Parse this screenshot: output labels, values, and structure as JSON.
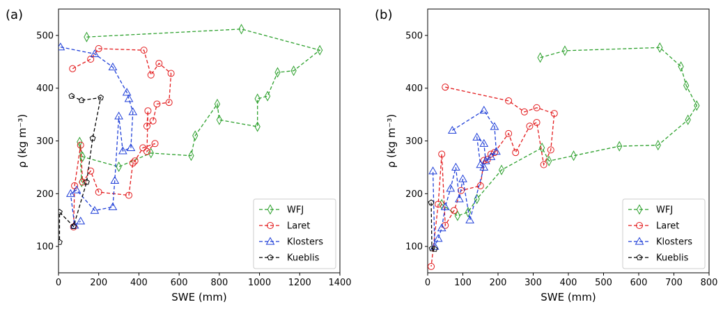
{
  "chart_data": [
    {
      "type": "line",
      "panel_label": "(a)",
      "xlabel": "SWE (mm)",
      "ylabel": "ρ (kg m⁻³)",
      "xlim": [
        0,
        1400
      ],
      "ylim": [
        50,
        550
      ],
      "xticks": [
        0,
        200,
        400,
        600,
        800,
        1000,
        1200,
        1400
      ],
      "yticks": [
        100,
        200,
        300,
        400,
        500
      ],
      "legend_position": "lower-right",
      "series": [
        {
          "name": "WFJ",
          "color": "#2ca02c",
          "marker": "diamond",
          "x": [
            140,
            910,
            1300,
            1170,
            1090,
            1040,
            990,
            990,
            800,
            790,
            680,
            660,
            460,
            300,
            120,
            105,
            115
          ],
          "y": [
            497,
            512,
            472,
            433,
            430,
            385,
            380,
            327,
            340,
            370,
            310,
            272,
            277,
            251,
            270,
            298,
            222
          ]
        },
        {
          "name": "Laret",
          "color": "#e31a1c",
          "marker": "circle",
          "x": [
            70,
            160,
            200,
            425,
            460,
            500,
            560,
            550,
            490,
            470,
            440,
            445,
            440,
            480,
            420,
            380,
            370,
            350,
            200,
            160,
            120,
            110,
            80,
            75
          ],
          "y": [
            437,
            455,
            475,
            472,
            425,
            447,
            428,
            373,
            370,
            338,
            328,
            357,
            280,
            295,
            287,
            262,
            258,
            197,
            203,
            243,
            222,
            292,
            215,
            137
          ]
        },
        {
          "name": "Klosters",
          "color": "#1f3fd8",
          "marker": "triangle",
          "x": [
            10,
            180,
            270,
            340,
            350,
            370,
            360,
            320,
            300,
            280,
            270,
            180,
            90,
            60,
            80,
            110
          ],
          "y": [
            478,
            465,
            440,
            392,
            380,
            355,
            287,
            281,
            347,
            225,
            175,
            168,
            207,
            200,
            140,
            148
          ]
        },
        {
          "name": "Kueblis",
          "color": "#000000",
          "marker": "pentagon",
          "x": [
            65,
            115,
            210,
            170,
            140,
            75,
            5,
            5
          ],
          "y": [
            385,
            377,
            382,
            305,
            222,
            138,
            165,
            108
          ]
        }
      ]
    },
    {
      "type": "line",
      "panel_label": "(b)",
      "xlabel": "SWE (mm)",
      "ylabel": "ρ (kg m⁻³)",
      "xlim": [
        0,
        800
      ],
      "ylim": [
        50,
        550
      ],
      "xticks": [
        0,
        100,
        200,
        300,
        400,
        500,
        600,
        700,
        800
      ],
      "yticks": [
        100,
        200,
        300,
        400,
        500
      ],
      "legend_position": "lower-right",
      "series": [
        {
          "name": "WFJ",
          "color": "#2ca02c",
          "marker": "diamond",
          "x": [
            320,
            390,
            660,
            720,
            735,
            765,
            740,
            655,
            545,
            415,
            345,
            325,
            210,
            140,
            115,
            85,
            40
          ],
          "y": [
            458,
            471,
            477,
            441,
            405,
            367,
            340,
            292,
            290,
            272,
            262,
            287,
            245,
            190,
            165,
            158,
            180
          ]
        },
        {
          "name": "Laret",
          "color": "#e31a1c",
          "marker": "circle",
          "x": [
            50,
            230,
            275,
            310,
            360,
            350,
            330,
            310,
            290,
            250,
            230,
            190,
            180,
            170,
            160,
            150,
            95,
            75,
            50,
            40,
            30,
            10
          ],
          "y": [
            402,
            376,
            355,
            363,
            352,
            283,
            255,
            335,
            328,
            278,
            314,
            278,
            275,
            265,
            263,
            215,
            206,
            168,
            140,
            275,
            180,
            62
          ]
        },
        {
          "name": "Klosters",
          "color": "#1f3fd8",
          "marker": "triangle",
          "x": [
            70,
            160,
            190,
            195,
            180,
            165,
            160,
            140,
            150,
            160,
            120,
            100,
            90,
            80,
            65,
            50,
            40,
            30,
            20,
            15
          ],
          "y": [
            320,
            358,
            327,
            280,
            270,
            262,
            295,
            307,
            255,
            250,
            150,
            228,
            190,
            250,
            210,
            175,
            135,
            115,
            100,
            243
          ]
        },
        {
          "name": "Kueblis",
          "color": "#000000",
          "marker": "pentagon",
          "x": [
            10,
            12,
            20
          ],
          "y": [
            183,
            96,
            95
          ]
        }
      ]
    }
  ]
}
